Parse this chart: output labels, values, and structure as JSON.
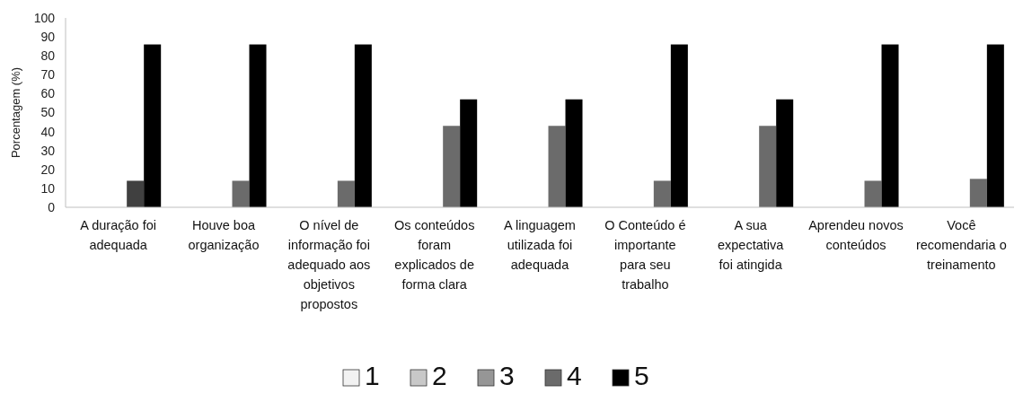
{
  "chart_data": {
    "type": "bar",
    "ylabel": "Porcentagem (%)",
    "categories": [
      "A duração foi adequada",
      "Houve boa organização",
      "O nível de informação foi adequado aos objetivos propostos",
      "Os conteúdos foram explicados de forma clara",
      "A linguagem utilizada foi adequada",
      "O Conteúdo é importante para seu trabalho",
      "A sua expectativa foi atingida",
      "Aprendeu novos conteúdos",
      "Você recomendaria o treinamento"
    ],
    "series": [
      {
        "name": "1",
        "color": "#f2f2f2",
        "values": [
          0,
          0,
          0,
          0,
          0,
          0,
          0,
          0,
          0
        ]
      },
      {
        "name": "2",
        "color": "#c8c8c8",
        "values": [
          0,
          0,
          0,
          0,
          0,
          0,
          0,
          0,
          0
        ]
      },
      {
        "name": "3",
        "color": "#969696",
        "values": [
          0,
          0,
          0,
          0,
          0,
          0,
          0,
          0,
          0
        ]
      },
      {
        "name": "4",
        "color": "#6b6b6b",
        "colors": [
          "#404040",
          "#6b6b6b",
          "#6b6b6b",
          "#6b6b6b",
          "#6b6b6b",
          "#6b6b6b",
          "#6b6b6b",
          "#6b6b6b",
          "#6b6b6b"
        ],
        "values": [
          14,
          14,
          14,
          43,
          43,
          14,
          43,
          14,
          15
        ]
      },
      {
        "name": "5",
        "color": "#000000",
        "values": [
          86,
          86,
          86,
          57,
          57,
          86,
          57,
          86,
          86
        ]
      }
    ],
    "ylim": [
      0,
      100
    ],
    "yticks": [
      0,
      10,
      20,
      30,
      40,
      50,
      60,
      70,
      80,
      90,
      100
    ],
    "grid": false,
    "legend": "bottom"
  }
}
